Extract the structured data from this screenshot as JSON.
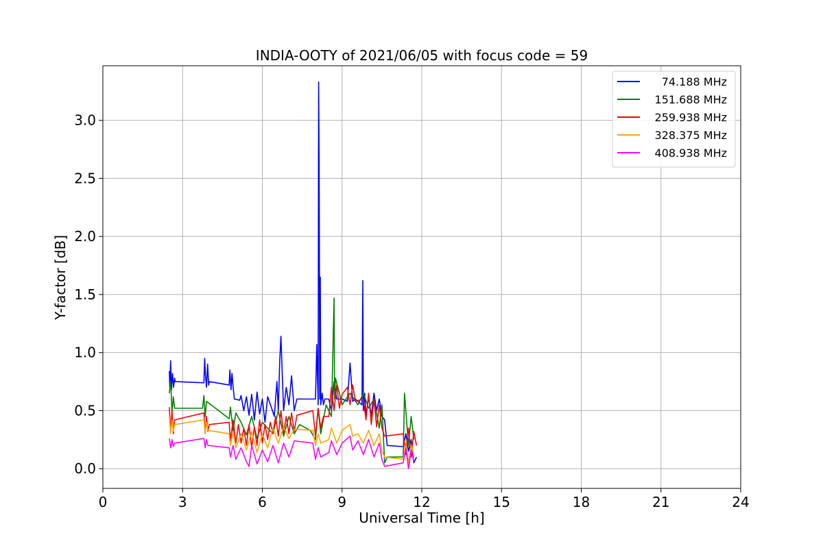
{
  "chart_data": {
    "type": "line",
    "title": "INDIA-OOTY of 2021/06/05 with focus code = 59",
    "xlabel": "Universal Time [h]",
    "ylabel": "Y-factor [dB]",
    "xlim": [
      0,
      24
    ],
    "ylim": [
      -0.17,
      3.47
    ],
    "xticks": [
      0,
      3,
      6,
      9,
      12,
      15,
      18,
      21,
      24
    ],
    "xtick_labels": [
      "0",
      "3",
      "6",
      "9",
      "12",
      "15",
      "18",
      "21",
      "24"
    ],
    "yticks": [
      0.0,
      0.5,
      1.0,
      1.5,
      2.0,
      2.5,
      3.0
    ],
    "ytick_labels": [
      "0.0",
      "0.5",
      "1.0",
      "1.5",
      "2.0",
      "2.5",
      "3.0"
    ],
    "grid": true,
    "legend_position": "top-right",
    "series": [
      {
        "name": "74.188 MHz",
        "color": "#0000ff",
        "x": [
          2.5,
          2.52,
          2.55,
          2.58,
          2.62,
          2.66,
          2.7,
          2.72,
          3.8,
          3.83,
          3.86,
          3.9,
          3.94,
          3.98,
          4.0,
          4.75,
          4.78,
          4.82,
          4.86,
          4.9,
          4.95,
          5.15,
          5.2,
          5.3,
          5.4,
          5.5,
          5.6,
          5.7,
          5.8,
          5.9,
          6.0,
          6.1,
          6.2,
          6.35,
          6.45,
          6.55,
          6.6,
          6.65,
          6.7,
          6.8,
          6.9,
          7.0,
          7.1,
          7.2,
          7.3,
          8.0,
          8.05,
          8.1,
          8.12,
          8.14,
          8.16,
          8.18,
          8.2,
          8.25,
          8.3,
          8.35,
          8.5,
          8.6,
          8.7,
          8.8,
          9.0,
          9.2,
          9.3,
          9.4,
          9.5,
          9.75,
          9.78,
          9.8,
          9.85,
          9.9,
          10.0,
          10.1,
          10.2,
          10.3,
          10.4,
          10.5,
          10.6,
          10.7,
          11.3,
          11.4,
          11.5,
          11.6,
          11.7,
          11.8
        ],
        "y": [
          0.84,
          0.7,
          0.93,
          0.68,
          0.82,
          0.7,
          0.78,
          0.75,
          0.74,
          0.95,
          0.8,
          0.7,
          0.9,
          0.72,
          0.75,
          0.72,
          0.85,
          0.68,
          0.82,
          0.7,
          0.6,
          0.59,
          0.63,
          0.5,
          0.62,
          0.46,
          0.64,
          0.42,
          0.66,
          0.47,
          0.6,
          0.4,
          0.62,
          0.52,
          0.45,
          0.75,
          0.5,
          0.9,
          1.14,
          0.5,
          0.7,
          0.55,
          0.8,
          0.5,
          0.6,
          0.6,
          1.07,
          0.55,
          3.33,
          2.5,
          0.6,
          1.65,
          0.55,
          0.65,
          0.55,
          0.6,
          0.6,
          0.5,
          0.75,
          0.6,
          0.6,
          0.58,
          0.91,
          0.58,
          0.6,
          0.55,
          1.62,
          0.5,
          0.65,
          0.45,
          0.62,
          0.45,
          0.65,
          0.5,
          0.6,
          0.45,
          0.42,
          0.2,
          0.19,
          0.3,
          0.15,
          0.25,
          0.05,
          0.1
        ]
      },
      {
        "name": "151.688 MHz",
        "color": "#008000",
        "x": [
          2.5,
          2.55,
          2.6,
          2.65,
          2.7,
          3.75,
          3.8,
          3.85,
          3.9,
          4.75,
          4.8,
          4.9,
          5.0,
          5.2,
          5.4,
          5.6,
          5.8,
          6.0,
          6.4,
          6.6,
          6.8,
          7.0,
          7.2,
          7.4,
          7.8,
          8.0,
          8.1,
          8.2,
          8.4,
          8.6,
          8.7,
          8.72,
          8.75,
          8.9,
          9.0,
          9.3,
          9.6,
          9.8,
          10.0,
          10.2,
          10.4,
          10.5,
          10.6,
          10.7,
          11.3,
          11.35,
          11.5,
          11.6,
          11.7
        ],
        "y": [
          0.65,
          0.75,
          0.48,
          0.62,
          0.52,
          0.52,
          0.63,
          0.45,
          0.58,
          0.43,
          0.53,
          0.32,
          0.48,
          0.4,
          0.29,
          0.45,
          0.26,
          0.4,
          0.3,
          0.5,
          0.28,
          0.45,
          0.3,
          0.38,
          0.33,
          0.25,
          0.52,
          0.3,
          0.55,
          0.45,
          1.47,
          0.6,
          0.78,
          0.65,
          0.55,
          0.65,
          0.55,
          0.65,
          0.52,
          0.6,
          0.35,
          0.55,
          0.05,
          0.1,
          0.1,
          0.65,
          0.2,
          0.45,
          0.25
        ]
      },
      {
        "name": "259.938 MHz",
        "color": "#ff0000",
        "x": [
          2.5,
          2.55,
          2.6,
          2.65,
          2.7,
          3.8,
          3.85,
          3.9,
          3.95,
          4.0,
          4.75,
          4.8,
          4.9,
          5.0,
          5.1,
          5.2,
          5.3,
          5.4,
          5.5,
          5.6,
          5.7,
          5.8,
          5.9,
          6.0,
          6.1,
          6.2,
          6.3,
          6.4,
          6.5,
          6.6,
          6.7,
          6.8,
          6.9,
          7.0,
          7.1,
          7.2,
          7.3,
          7.9,
          8.0,
          8.1,
          8.2,
          8.3,
          8.5,
          8.6,
          8.7,
          8.8,
          8.9,
          9.0,
          9.2,
          9.3,
          9.4,
          9.5,
          9.8,
          9.9,
          10.0,
          10.1,
          10.2,
          10.3,
          10.4,
          10.5,
          10.6,
          11.3,
          11.4,
          11.5,
          11.6,
          11.7,
          11.8
        ],
        "y": [
          0.53,
          0.32,
          0.5,
          0.3,
          0.42,
          0.48,
          0.3,
          0.45,
          0.32,
          0.38,
          0.4,
          0.24,
          0.42,
          0.22,
          0.38,
          0.22,
          0.35,
          0.2,
          0.38,
          0.18,
          0.36,
          0.2,
          0.42,
          0.22,
          0.38,
          0.25,
          0.4,
          0.3,
          0.45,
          0.28,
          0.5,
          0.3,
          0.45,
          0.3,
          0.48,
          0.32,
          0.46,
          0.5,
          0.28,
          0.52,
          0.35,
          0.45,
          0.45,
          0.7,
          0.5,
          0.72,
          0.52,
          0.64,
          0.7,
          0.55,
          0.72,
          0.58,
          0.6,
          0.42,
          0.65,
          0.38,
          0.6,
          0.36,
          0.55,
          0.35,
          0.28,
          0.3,
          0.12,
          0.35,
          0.1,
          0.32,
          0.2
        ]
      },
      {
        "name": "328.375 MHz",
        "color": "#ffa500",
        "x": [
          2.5,
          2.55,
          2.6,
          2.65,
          2.7,
          3.8,
          3.85,
          3.9,
          3.95,
          4.75,
          4.8,
          4.9,
          5.0,
          5.2,
          5.4,
          5.6,
          5.8,
          6.0,
          6.2,
          6.4,
          6.6,
          6.8,
          7.0,
          7.2,
          7.9,
          8.0,
          8.1,
          8.2,
          8.5,
          8.6,
          8.8,
          9.0,
          9.3,
          9.4,
          9.6,
          9.8,
          10.0,
          10.2,
          10.4,
          10.5,
          10.6,
          11.3,
          11.4,
          11.5,
          11.6,
          11.7
        ],
        "y": [
          0.45,
          0.3,
          0.42,
          0.32,
          0.38,
          0.42,
          0.3,
          0.4,
          0.33,
          0.3,
          0.2,
          0.32,
          0.18,
          0.3,
          0.16,
          0.32,
          0.14,
          0.3,
          0.18,
          0.35,
          0.22,
          0.36,
          0.26,
          0.34,
          0.33,
          0.2,
          0.3,
          0.22,
          0.25,
          0.35,
          0.22,
          0.33,
          0.38,
          0.28,
          0.3,
          0.22,
          0.33,
          0.2,
          0.3,
          0.15,
          0.1,
          0.08,
          0.22,
          0.05,
          0.2,
          0.12
        ]
      },
      {
        "name": "408.938 MHz",
        "color": "#ff00ff",
        "x": [
          2.5,
          2.55,
          2.6,
          2.65,
          2.7,
          3.8,
          3.85,
          3.9,
          3.95,
          4.75,
          4.8,
          4.9,
          5.0,
          5.2,
          5.4,
          5.5,
          5.6,
          5.8,
          6.0,
          6.2,
          6.4,
          6.6,
          6.8,
          7.0,
          7.2,
          7.9,
          8.0,
          8.1,
          8.2,
          8.5,
          8.6,
          8.8,
          9.0,
          9.3,
          9.4,
          9.6,
          9.8,
          10.0,
          10.2,
          10.4,
          10.5,
          10.6,
          11.3,
          11.4,
          11.5,
          11.6,
          11.7
        ],
        "y": [
          0.26,
          0.18,
          0.25,
          0.19,
          0.22,
          0.26,
          0.18,
          0.25,
          0.2,
          0.18,
          0.1,
          0.2,
          0.08,
          0.18,
          0.06,
          0.02,
          0.2,
          0.04,
          0.16,
          0.06,
          0.2,
          0.05,
          0.22,
          0.1,
          0.24,
          0.22,
          0.08,
          0.18,
          0.1,
          0.14,
          0.24,
          0.12,
          0.22,
          0.28,
          0.16,
          0.24,
          0.12,
          0.25,
          0.1,
          0.22,
          0.08,
          0.02,
          0.05,
          0.18,
          0.0,
          0.16,
          0.06
        ]
      }
    ]
  }
}
